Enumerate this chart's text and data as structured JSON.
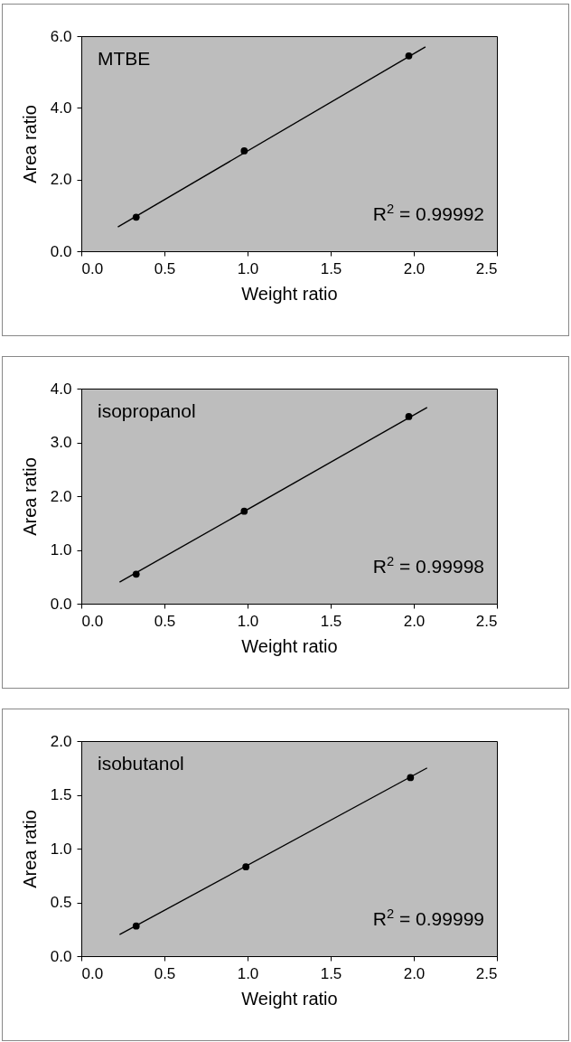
{
  "chart_data": [
    {
      "type": "scatter",
      "title": "MTBE",
      "xlabel": "Weight ratio",
      "ylabel": "Area ratio",
      "xlim": [
        0,
        2.5
      ],
      "ylim": [
        0,
        6
      ],
      "xticks": [
        {
          "value": 0,
          "label": "0.0"
        },
        {
          "value": 0.5,
          "label": "0.5"
        },
        {
          "value": 1,
          "label": "1.0"
        },
        {
          "value": 1.5,
          "label": "1.5"
        },
        {
          "value": 2,
          "label": "2.0"
        },
        {
          "value": 2.5,
          "label": "2.5"
        }
      ],
      "yticks": [
        {
          "value": 0,
          "label": "0.0"
        },
        {
          "value": 2,
          "label": "2.0"
        },
        {
          "value": 4,
          "label": "4.0"
        },
        {
          "value": 6,
          "label": "6.0"
        }
      ],
      "grid": false,
      "annotations": [
        "R$^{2}$ = 0.99992"
      ],
      "series": [
        {
          "color": "#000000",
          "marker": "circle",
          "x": [
            0.33,
            0.98,
            1.97
          ],
          "values": [
            0.95,
            2.8,
            5.45
          ]
        },
        {
          "type": "line",
          "marker": "none",
          "color": "#000000",
          "x": [
            0.22,
            2.07
          ],
          "values": [
            0.68,
            5.7
          ]
        }
      ]
    },
    {
      "type": "scatter",
      "title": "isopropanol",
      "xlabel": "Weight ratio",
      "ylabel": "Area ratio",
      "xlim": [
        0,
        2.5
      ],
      "ylim": [
        0,
        4
      ],
      "xticks": [
        {
          "value": 0,
          "label": "0.0"
        },
        {
          "value": 0.5,
          "label": "0.5"
        },
        {
          "value": 1,
          "label": "1.0"
        },
        {
          "value": 1.5,
          "label": "1.5"
        },
        {
          "value": 2,
          "label": "2.0"
        },
        {
          "value": 2.5,
          "label": "2.5"
        }
      ],
      "yticks": [
        {
          "value": 0,
          "label": "0.0"
        },
        {
          "value": 1,
          "label": "1.0"
        },
        {
          "value": 2,
          "label": "2.0"
        },
        {
          "value": 3,
          "label": "3.0"
        },
        {
          "value": 4,
          "label": "4.0"
        }
      ],
      "grid": false,
      "annotations": [
        "R$^{2}$ = 0.99998"
      ],
      "series": [
        {
          "color": "#000000",
          "marker": "circle",
          "x": [
            0.33,
            0.98,
            1.97
          ],
          "values": [
            0.55,
            1.72,
            3.48
          ]
        },
        {
          "type": "line",
          "marker": "none",
          "color": "#000000",
          "x": [
            0.23,
            2.08
          ],
          "values": [
            0.4,
            3.65
          ]
        }
      ]
    },
    {
      "type": "scatter",
      "title": "isobutanol",
      "xlabel": "Weight ratio",
      "ylabel": "Area ratio",
      "xlim": [
        0,
        2.5
      ],
      "ylim": [
        0,
        2
      ],
      "xticks": [
        {
          "value": 0,
          "label": "0.0"
        },
        {
          "value": 0.5,
          "label": "0.5"
        },
        {
          "value": 1,
          "label": "1.0"
        },
        {
          "value": 1.5,
          "label": "1.5"
        },
        {
          "value": 2,
          "label": "2.0"
        },
        {
          "value": 2.5,
          "label": "2.5"
        }
      ],
      "yticks": [
        {
          "value": 0,
          "label": "0.0"
        },
        {
          "value": 0.5,
          "label": "0.5"
        },
        {
          "value": 1,
          "label": "1.0"
        },
        {
          "value": 1.5,
          "label": "1.5"
        },
        {
          "value": 2,
          "label": "2.0"
        }
      ],
      "grid": false,
      "annotations": [
        "R$^{2}$ = 0.99999"
      ],
      "series": [
        {
          "color": "#000000",
          "marker": "circle",
          "x": [
            0.33,
            0.99,
            1.98
          ],
          "values": [
            0.28,
            0.83,
            1.66
          ]
        },
        {
          "type": "line",
          "marker": "none",
          "color": "#000000",
          "x": [
            0.23,
            2.08
          ],
          "values": [
            0.2,
            1.75
          ]
        }
      ]
    }
  ]
}
